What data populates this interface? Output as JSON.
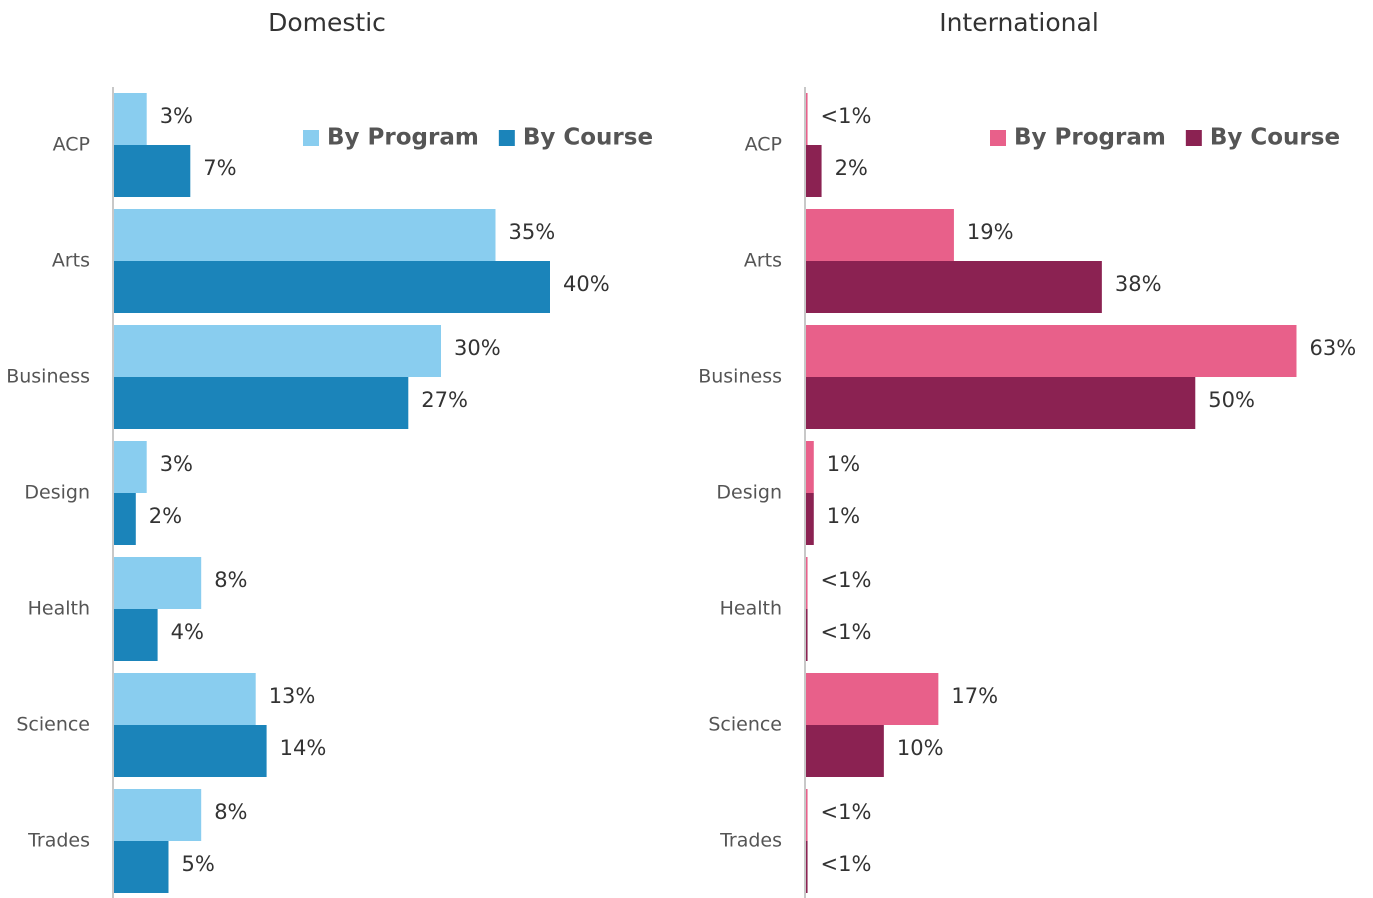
{
  "chart_data": [
    {
      "type": "bar",
      "orientation": "horizontal",
      "title": "Domestic",
      "categories": [
        "ACP",
        "Arts",
        "Business",
        "Design",
        "Health",
        "Science",
        "Trades"
      ],
      "series": [
        {
          "name": "By Program",
          "color": "#89cdef",
          "values": [
            3,
            35,
            30,
            3,
            8,
            13,
            8
          ],
          "value_labels": [
            "3%",
            "35%",
            "30%",
            "3%",
            "8%",
            "13%",
            "8%"
          ]
        },
        {
          "name": "By Course",
          "color": "#1b84ba",
          "values": [
            7,
            40,
            27,
            2,
            4,
            14,
            5
          ],
          "value_labels": [
            "7%",
            "40%",
            "27%",
            "2%",
            "4%",
            "14%",
            "5%"
          ]
        }
      ],
      "xlim": [
        0,
        50
      ],
      "legend": "top-right"
    },
    {
      "type": "bar",
      "orientation": "horizontal",
      "title": "International",
      "categories": [
        "ACP",
        "Arts",
        "Business",
        "Design",
        "Health",
        "Science",
        "Trades"
      ],
      "series": [
        {
          "name": "By Program",
          "color": "#e8608a",
          "values": [
            0.2,
            19,
            63,
            1,
            0.2,
            17,
            0.2
          ],
          "value_labels": [
            "<1%",
            "19%",
            "63%",
            "1%",
            "<1%",
            "17%",
            "<1%"
          ]
        },
        {
          "name": "By Course",
          "color": "#8b2252",
          "values": [
            2,
            38,
            50,
            1,
            0.2,
            10,
            0.2
          ],
          "value_labels": [
            "2%",
            "38%",
            "50%",
            "1%",
            "<1%",
            "10%",
            "<1%"
          ]
        }
      ],
      "xlim": [
        0,
        70
      ],
      "legend": "top-right"
    }
  ]
}
